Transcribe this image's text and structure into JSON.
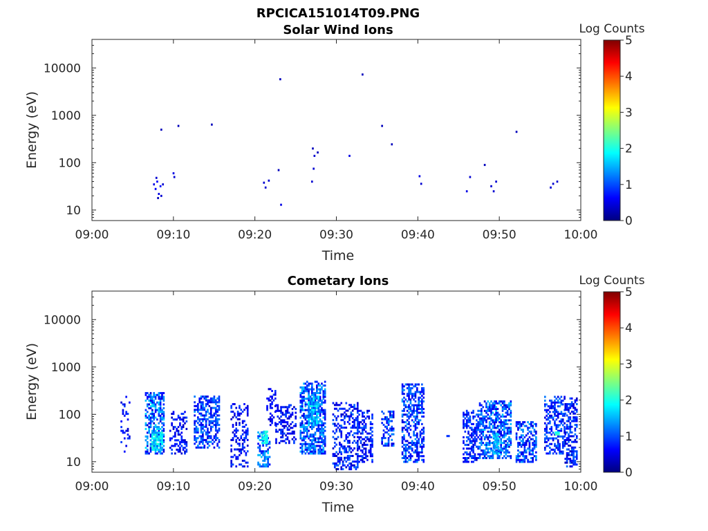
{
  "figure": {
    "title": "RPCICA151014T09.PNG"
  },
  "colorbar": {
    "colors": [
      "#00007f",
      "#0000ff",
      "#007fff",
      "#00ffff",
      "#7fff7f",
      "#ffff00",
      "#ff7f00",
      "#ff0000",
      "#7f0000"
    ]
  },
  "chart_data": [
    {
      "type": "heatmap",
      "title": "Solar Wind Ions",
      "xlabel": "Time",
      "ylabel": "Energy (eV)",
      "x_ticks": [
        "09:00",
        "09:10",
        "09:20",
        "09:30",
        "09:40",
        "09:50",
        "10:00"
      ],
      "xlim_minutes": [
        0,
        60
      ],
      "y_ticks": [
        "10",
        "100",
        "1000",
        "10000"
      ],
      "y_tick_values": [
        10,
        100,
        1000,
        10000
      ],
      "yscale": "log",
      "ylim": [
        6,
        40000
      ],
      "colorbar": {
        "label": "Log Counts",
        "ticks": [
          "0",
          "1",
          "2",
          "3",
          "4",
          "5"
        ],
        "range": [
          0,
          5
        ]
      },
      "cells": [
        [
          7.5,
          35,
          0.5
        ],
        [
          7.7,
          28,
          0.6
        ],
        [
          7.9,
          40,
          0.6
        ],
        [
          8.1,
          22,
          0.5
        ],
        [
          8.3,
          32,
          0.7
        ],
        [
          7.8,
          48,
          0.4
        ],
        [
          8.6,
          35,
          0.4
        ],
        [
          8.0,
          18,
          0.3
        ],
        [
          8.4,
          20,
          0.4
        ],
        [
          9.9,
          60,
          0.5
        ],
        [
          10.0,
          50,
          0.4
        ],
        [
          8.4,
          500,
          0.3
        ],
        [
          10.5,
          600,
          0.3
        ],
        [
          14.6,
          640,
          0.3
        ],
        [
          21.0,
          38,
          0.4
        ],
        [
          21.2,
          30,
          0.4
        ],
        [
          21.6,
          42,
          0.4
        ],
        [
          22.8,
          70,
          0.3
        ],
        [
          23.1,
          13,
          0.5
        ],
        [
          23.0,
          5800,
          0.3
        ],
        [
          26.9,
          40,
          0.4
        ],
        [
          27.1,
          75,
          0.4
        ],
        [
          27.2,
          140,
          0.4
        ],
        [
          27.0,
          200,
          0.3
        ],
        [
          27.6,
          165,
          0.3
        ],
        [
          31.5,
          140,
          0.5
        ],
        [
          33.1,
          7300,
          0.3
        ],
        [
          35.5,
          600,
          0.3
        ],
        [
          36.7,
          245,
          0.3
        ],
        [
          40.1,
          52,
          0.5
        ],
        [
          40.3,
          36,
          0.4
        ],
        [
          45.9,
          25,
          0.5
        ],
        [
          46.3,
          50,
          0.4
        ],
        [
          48.1,
          90,
          0.3
        ],
        [
          48.9,
          32,
          0.4
        ],
        [
          49.2,
          25,
          0.4
        ],
        [
          49.5,
          40,
          0.4
        ],
        [
          52.0,
          450,
          0.3
        ],
        [
          56.2,
          30,
          0.4
        ],
        [
          56.5,
          36,
          0.4
        ],
        [
          57.0,
          40,
          0.4
        ]
      ]
    },
    {
      "type": "heatmap",
      "title": "Cometary Ions",
      "xlabel": "Time",
      "ylabel": "Energy (eV)",
      "x_ticks": [
        "09:00",
        "09:10",
        "09:20",
        "09:30",
        "09:40",
        "09:50",
        "10:00"
      ],
      "xlim_minutes": [
        0,
        60
      ],
      "y_ticks": [
        "10",
        "100",
        "1000",
        "10000"
      ],
      "y_tick_values": [
        10,
        100,
        1000,
        10000
      ],
      "yscale": "log",
      "ylim": [
        6,
        40000
      ],
      "colorbar": {
        "label": "Log Counts",
        "ticks": [
          "0",
          "1",
          "2",
          "3",
          "4",
          "5"
        ],
        "range": [
          0,
          5
        ]
      },
      "clusters": [
        {
          "t": [
            3.5,
            4.6
          ],
          "e": [
            15,
            250
          ],
          "density": 0.22,
          "level": [
            0.3,
            1.0
          ]
        },
        {
          "t": [
            6.5,
            8.8
          ],
          "e": [
            15,
            300
          ],
          "density": 0.55,
          "level": [
            0.4,
            1.8
          ]
        },
        {
          "t": [
            7.3,
            8.5
          ],
          "e": [
            18,
            45
          ],
          "density": 0.9,
          "level": [
            1.3,
            2.2
          ]
        },
        {
          "t": [
            9.5,
            11.5
          ],
          "e": [
            15,
            120
          ],
          "density": 0.35,
          "level": [
            0.3,
            1.0
          ]
        },
        {
          "t": [
            12.5,
            15.5
          ],
          "e": [
            20,
            250
          ],
          "density": 0.55,
          "level": [
            0.4,
            1.4
          ]
        },
        {
          "t": [
            17.0,
            19.0
          ],
          "e": [
            8,
            180
          ],
          "density": 0.35,
          "level": [
            0.3,
            1.0
          ]
        },
        {
          "t": [
            20.3,
            21.8
          ],
          "e": [
            8,
            45
          ],
          "density": 0.5,
          "level": [
            0.4,
            1.7
          ]
        },
        {
          "t": [
            20.8,
            21.4
          ],
          "e": [
            25,
            45
          ],
          "density": 0.85,
          "level": [
            1.5,
            2.1
          ]
        },
        {
          "t": [
            21.4,
            22.5
          ],
          "e": [
            60,
            400
          ],
          "density": 0.3,
          "level": [
            0.3,
            0.9
          ]
        },
        {
          "t": [
            22.5,
            25.0
          ],
          "e": [
            25,
            160
          ],
          "density": 0.4,
          "level": [
            0.3,
            1.0
          ]
        },
        {
          "t": [
            25.5,
            28.5
          ],
          "e": [
            15,
            500
          ],
          "density": 0.6,
          "level": [
            0.4,
            1.6
          ]
        },
        {
          "t": [
            26.5,
            27.8
          ],
          "e": [
            60,
            260
          ],
          "density": 0.75,
          "level": [
            1.0,
            2.0
          ]
        },
        {
          "t": [
            29.5,
            32.5
          ],
          "e": [
            7,
            180
          ],
          "density": 0.4,
          "level": [
            0.3,
            1.2
          ]
        },
        {
          "t": [
            32.5,
            34.5
          ],
          "e": [
            10,
            120
          ],
          "density": 0.45,
          "level": [
            0.3,
            1.1
          ]
        },
        {
          "t": [
            35.5,
            37.0
          ],
          "e": [
            22,
            120
          ],
          "density": 0.5,
          "level": [
            0.4,
            1.4
          ]
        },
        {
          "t": [
            38.0,
            40.8
          ],
          "e": [
            10,
            450
          ],
          "density": 0.5,
          "level": [
            0.4,
            1.4
          ]
        },
        {
          "t": [
            45.5,
            47.5
          ],
          "e": [
            10,
            130
          ],
          "density": 0.5,
          "level": [
            0.4,
            1.2
          ]
        },
        {
          "t": [
            47.5,
            51.5
          ],
          "e": [
            12,
            200
          ],
          "density": 0.6,
          "level": [
            0.4,
            1.6
          ]
        },
        {
          "t": [
            49.2,
            50.0
          ],
          "e": [
            15,
            40
          ],
          "density": 0.8,
          "level": [
            1.2,
            1.9
          ]
        },
        {
          "t": [
            52.0,
            54.5
          ],
          "e": [
            10,
            70
          ],
          "density": 0.5,
          "level": [
            0.4,
            1.5
          ]
        },
        {
          "t": [
            55.5,
            58.0
          ],
          "e": [
            15,
            250
          ],
          "density": 0.5,
          "level": [
            0.4,
            1.3
          ]
        },
        {
          "t": [
            56.8,
            57.2
          ],
          "e": [
            38,
            45
          ],
          "density": 1.0,
          "level": [
            1.9,
            2.2
          ]
        },
        {
          "t": [
            58.0,
            59.5
          ],
          "e": [
            8,
            220
          ],
          "density": 0.5,
          "level": [
            0.3,
            1.2
          ]
        },
        {
          "t": [
            43.5,
            43.7
          ],
          "e": [
            35,
            38
          ],
          "density": 1.0,
          "level": [
            0.8,
            0.9
          ]
        }
      ]
    }
  ]
}
